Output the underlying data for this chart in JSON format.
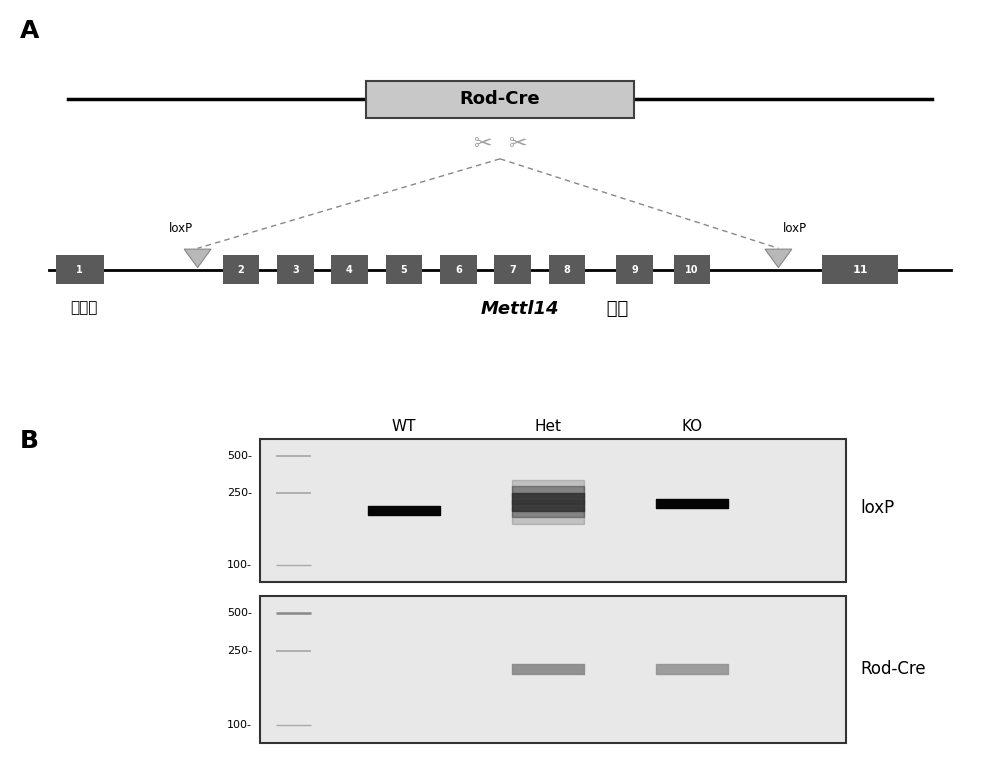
{
  "panel_A_label": "A",
  "panel_B_label": "B",
  "rod_cre_box_text": "Rod-Cre",
  "exon_label": "外显子",
  "gene_label_italic": "Mettl14",
  "gene_label_normal": " 基因",
  "loxP_label": "loxP",
  "gel_labels_top": [
    "WT",
    "Het",
    "KO"
  ],
  "gel_label1": "loxP",
  "gel_label2": "Rod-Cre",
  "background_color": "#ffffff",
  "exon_color": "#5a5a5a",
  "box_facecolor": "#c8c8c8",
  "box_edgecolor": "#404040",
  "line_color": "#000000",
  "gel_bg": "#e0e0e0",
  "gel_border_color": "#404040",
  "loxP_tri_face": "#b8b8b8",
  "loxP_tri_edge": "#888888",
  "dashed_line_color": "#888888",
  "scissors_color": "#a0a0a0",
  "marker_line_color": "#909090",
  "band_dark": "#0a0a0a",
  "band_smear": "#555555",
  "band_rodcre": "#808080"
}
